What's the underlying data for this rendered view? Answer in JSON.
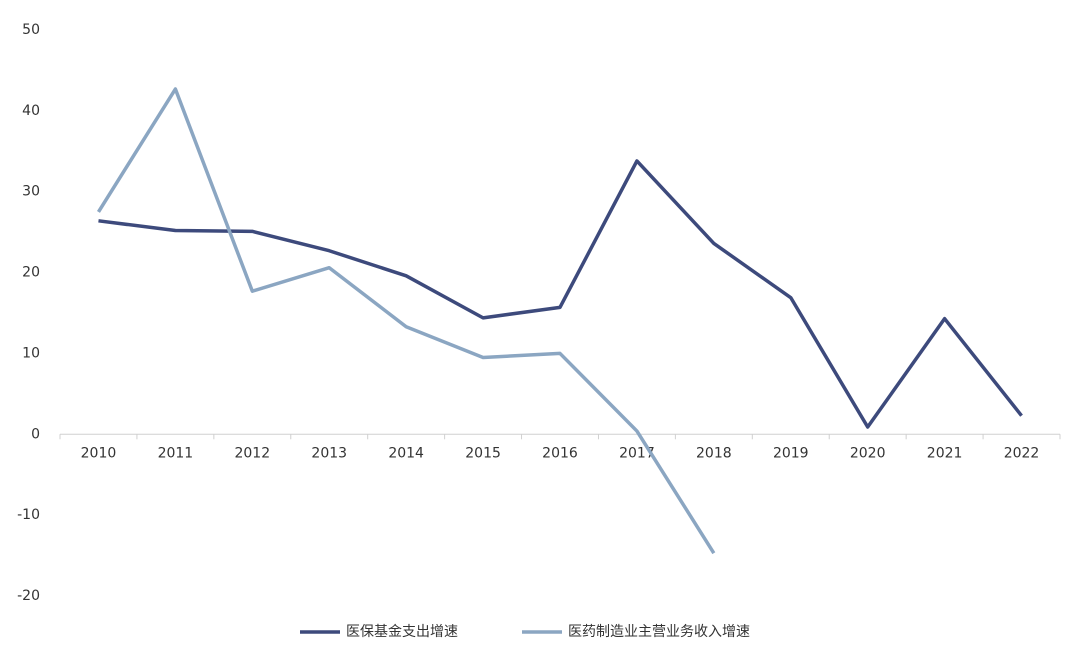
{
  "chart_data": {
    "type": "line",
    "categories": [
      "2010",
      "2011",
      "2012",
      "2013",
      "2014",
      "2015",
      "2016",
      "2017",
      "2018",
      "2019",
      "2020",
      "2021",
      "2022"
    ],
    "series": [
      {
        "name": "医保基金支出增速",
        "color": "#3d4a7c",
        "values": [
          26.4,
          25.2,
          25.1,
          22.7,
          19.6,
          14.4,
          15.7,
          33.8,
          23.6,
          16.9,
          0.9,
          14.3,
          2.3
        ]
      },
      {
        "name": "医药制造业主营业务收入增速",
        "color": "#8ba6c2",
        "values": [
          27.5,
          42.7,
          17.7,
          20.6,
          13.3,
          9.5,
          10.0,
          0.4,
          -14.7,
          null,
          null,
          null,
          null
        ]
      }
    ],
    "ylim": [
      -20,
      50
    ],
    "yticks": [
      -20,
      -10,
      0,
      10,
      20,
      30,
      40,
      50
    ],
    "grid": false,
    "legend": "bottom"
  }
}
